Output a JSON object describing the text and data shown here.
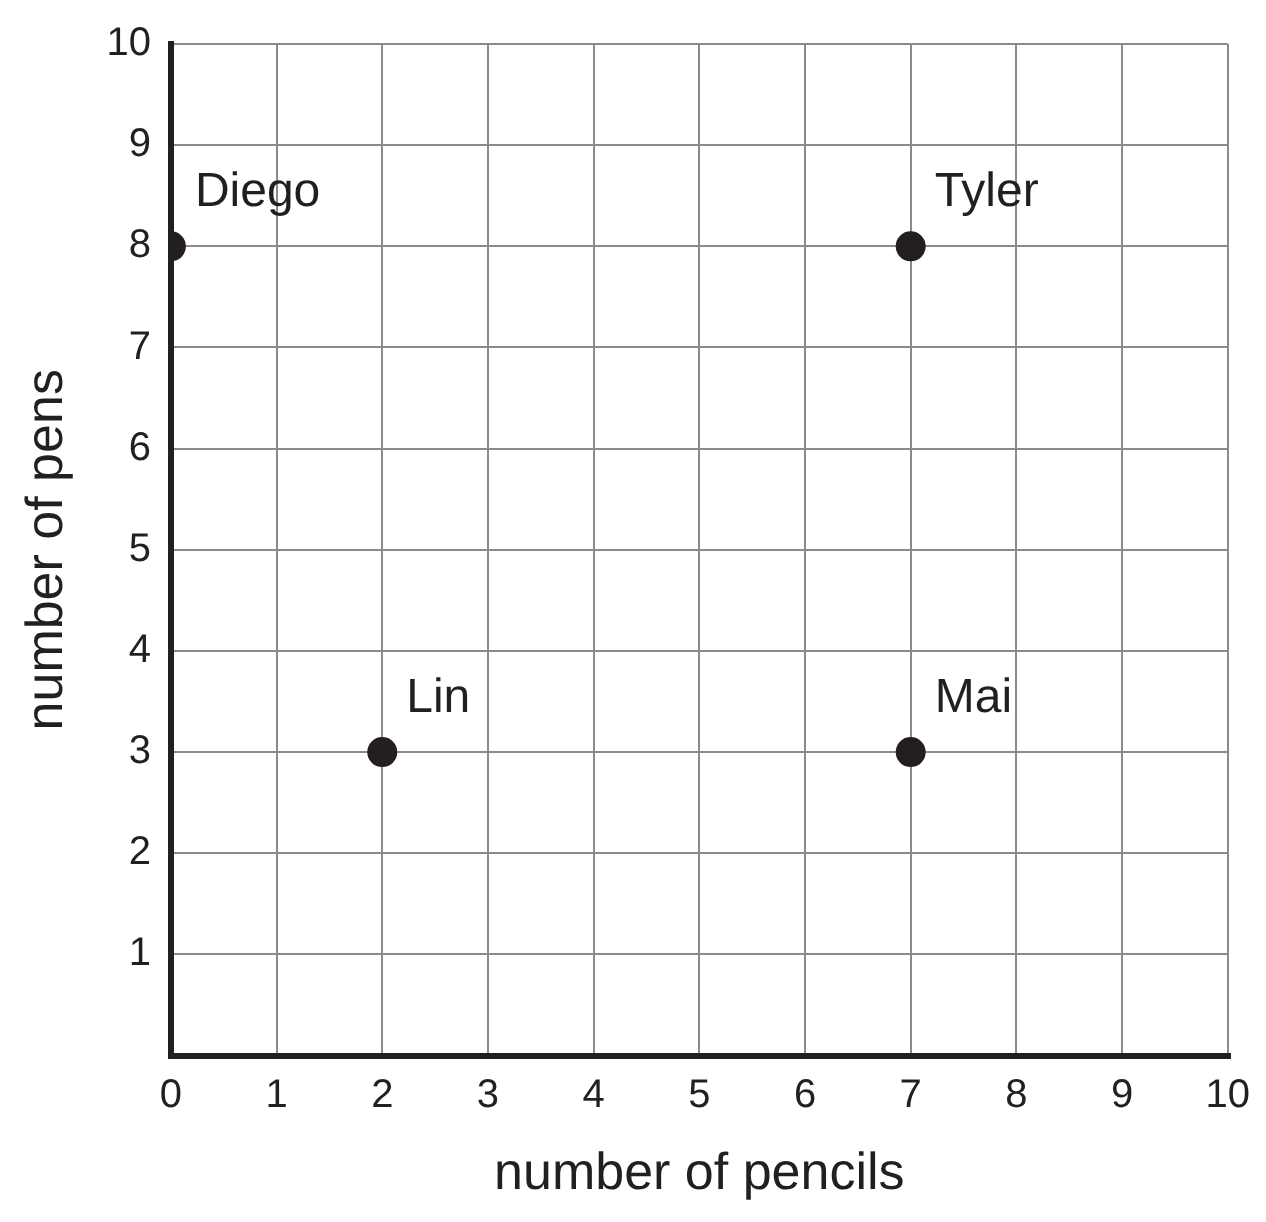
{
  "chart_data": {
    "type": "scatter",
    "xlabel": "number of pencils",
    "ylabel": "number of pens",
    "x": [
      0,
      7,
      2,
      7
    ],
    "values": [
      8,
      8,
      3,
      3
    ],
    "color": "#231f20",
    "marker": "circle",
    "xlim": [
      0,
      10
    ],
    "ylim": [
      0,
      10
    ],
    "xticks": [
      0,
      1,
      2,
      3,
      4,
      5,
      6,
      7,
      8,
      9,
      10
    ],
    "yticks": [
      {
        "value": 0,
        "label": null
      },
      1,
      2,
      3,
      4,
      5,
      6,
      7,
      8,
      9,
      10
    ],
    "grid": true,
    "annotations": [
      {
        "text": "Diego",
        "x": 0,
        "y": 8
      },
      {
        "text": "Tyler",
        "x": 7,
        "y": 8
      },
      {
        "text": "Lin",
        "x": 2,
        "y": 3
      },
      {
        "text": "Mai",
        "x": 7,
        "y": 3
      }
    ]
  }
}
